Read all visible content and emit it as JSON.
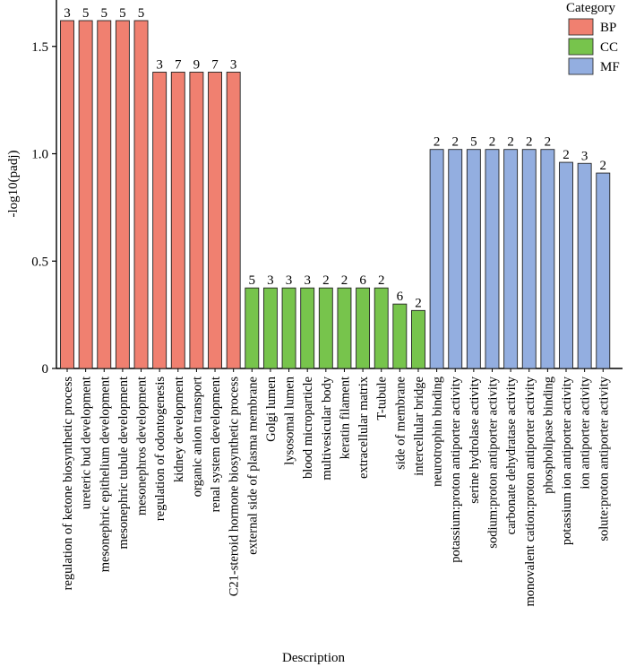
{
  "chart_data": {
    "type": "bar",
    "title": "",
    "xlabel": "Description",
    "ylabel": "-log10(padj)",
    "ylim": [
      0,
      1.7
    ],
    "yticks": [
      0,
      0.5,
      1.0,
      1.5
    ],
    "ytick_labels": [
      "0",
      "0.5",
      "1.0",
      "1.5"
    ],
    "grid": false,
    "legend": {
      "title": "Category",
      "placement": "top-right"
    },
    "categories": [
      "regulation of ketone biosynthetic process",
      "ureteric bud development",
      "mesonephric epithelium development",
      "mesonephric tubule development",
      "mesonephros development",
      "regulation of odontogenesis",
      "kidney development",
      "organic anion transport",
      "renal system development",
      "C21-steroid hormone biosynthetic process",
      "external side of plasma membrane",
      "Golgi lumen",
      "lysosomal lumen",
      "blood microparticle",
      "multivesicular body",
      "keratin filament",
      "extracellular matrix",
      "T-tubule",
      "side of membrane",
      "intercellular bridge",
      "neurotrophin binding",
      "potassium:proton antiporter activity",
      "serine hydrolase activity",
      "sodium:proton antiporter activity",
      "carbonate dehydratase activity",
      "monovalent cation:proton antiporter activity",
      "phospholipase binding",
      "potassium ion antiporter activity",
      "ion antiporter activity",
      "solute:proton antiporter activity"
    ],
    "values": [
      1.62,
      1.62,
      1.62,
      1.62,
      1.62,
      1.38,
      1.38,
      1.38,
      1.38,
      1.38,
      0.375,
      0.375,
      0.375,
      0.375,
      0.375,
      0.375,
      0.375,
      0.375,
      0.3,
      0.27,
      1.02,
      1.02,
      1.02,
      1.02,
      1.02,
      1.02,
      1.02,
      0.96,
      0.955,
      0.91
    ],
    "counts": [
      "3",
      "5",
      "5",
      "5",
      "5",
      "3",
      "7",
      "9",
      "7",
      "3",
      "5",
      "3",
      "3",
      "3",
      "2",
      "2",
      "6",
      "2",
      "6",
      "2",
      "2",
      "2",
      "5",
      "2",
      "2",
      "2",
      "2",
      "2",
      "3",
      "2"
    ],
    "category_of_bar": [
      "BP",
      "BP",
      "BP",
      "BP",
      "BP",
      "BP",
      "BP",
      "BP",
      "BP",
      "BP",
      "CC",
      "CC",
      "CC",
      "CC",
      "CC",
      "CC",
      "CC",
      "CC",
      "CC",
      "CC",
      "MF",
      "MF",
      "MF",
      "MF",
      "MF",
      "MF",
      "MF",
      "MF",
      "MF",
      "MF"
    ],
    "series": [
      {
        "name": "BP",
        "color": "#f08070"
      },
      {
        "name": "CC",
        "color": "#77c44c"
      },
      {
        "name": "MF",
        "color": "#93aee0"
      }
    ]
  }
}
